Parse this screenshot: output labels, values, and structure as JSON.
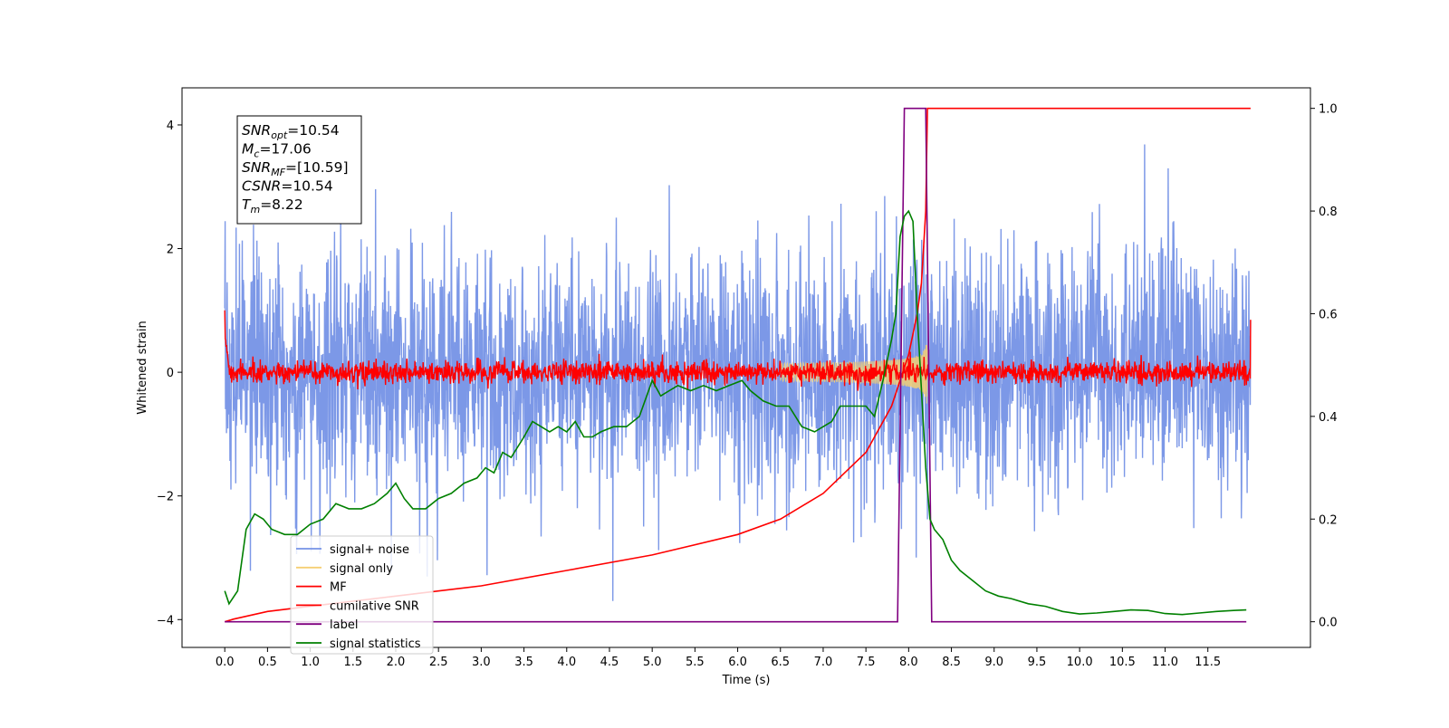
{
  "chart_data": {
    "type": "line",
    "xlabel": "Time (s)",
    "ylabel_left": "Whitened strain",
    "ylabel_right": "",
    "xlim": [
      -0.5,
      12.7
    ],
    "ylim_left": [
      -4.45,
      4.6
    ],
    "ylim_right": [
      -0.05,
      1.04
    ],
    "x_ticks": [
      0.0,
      0.5,
      1.0,
      1.5,
      2.0,
      2.5,
      3.0,
      3.5,
      4.0,
      4.5,
      5.0,
      5.5,
      6.0,
      6.5,
      7.0,
      7.5,
      8.0,
      8.5,
      9.0,
      9.5,
      10.0,
      10.5,
      11.0,
      11.5
    ],
    "x_tick_labels": [
      "0.0",
      "0.5",
      "1.0",
      "1.5",
      "2.0",
      "2.5",
      "3.0",
      "3.5",
      "4.0",
      "4.5",
      "5.0",
      "5.5",
      "6.0",
      "6.5",
      "7.0",
      "7.5",
      "8.0",
      "8.5",
      "9.0",
      "9.5",
      "10.0",
      "10.5",
      "11.0",
      "11.5"
    ],
    "y_left_ticks": [
      -4,
      -2,
      0,
      2,
      4
    ],
    "y_left_tick_labels": [
      "−4",
      "−2",
      "0",
      "2",
      "4"
    ],
    "y_right_ticks": [
      0.0,
      0.2,
      0.4,
      0.6,
      0.8,
      1.0
    ],
    "y_right_tick_labels": [
      "0.0",
      "0.2",
      "0.4",
      "0.6",
      "0.8",
      "1.0"
    ],
    "grid": false,
    "legend_position": "lower-left",
    "annotation_box": {
      "lines": [
        {
          "var": "SNR",
          "sub": "opt",
          "value": "=10.54"
        },
        {
          "var": "M",
          "sub": "c",
          "value": "=17.06"
        },
        {
          "var": "SNR",
          "sub": "MF",
          "value": "=[10.59]"
        },
        {
          "var": "CSNR",
          "sub": "",
          "value": "=10.54"
        },
        {
          "var": "T",
          "sub": "m",
          "value": "=8.22"
        }
      ]
    },
    "series": [
      {
        "name": "signal+ noise",
        "axis": "left",
        "color": "#7592e6",
        "kind": "noise",
        "x_range": [
          0.0,
          12.0
        ],
        "typical_amplitude": 1.0,
        "max_excursion": [
          -3.7,
          4.15
        ]
      },
      {
        "name": "signal only",
        "axis": "left",
        "color": "#f5cf73",
        "kind": "chirp",
        "x_range": [
          6.5,
          8.22
        ],
        "peak_amplitude": 0.95,
        "merger_time": 8.22
      },
      {
        "name": "MF",
        "axis": "left",
        "color": "#ff0000",
        "kind": "noise",
        "x_range": [
          0.0,
          12.0
        ],
        "typical_amplitude": 0.13,
        "edge_spike": 1.0
      },
      {
        "name": "cumilative SNR",
        "axis": "right",
        "color": "#ff0000",
        "x": [
          0.0,
          0.1,
          0.5,
          1.0,
          2.0,
          3.0,
          4.0,
          5.0,
          6.0,
          6.5,
          7.0,
          7.5,
          7.8,
          8.0,
          8.1,
          8.15,
          8.2,
          8.22,
          8.25,
          12.0
        ],
        "y": [
          0.0,
          0.005,
          0.02,
          0.03,
          0.05,
          0.07,
          0.1,
          0.13,
          0.17,
          0.2,
          0.25,
          0.33,
          0.42,
          0.52,
          0.6,
          0.66,
          0.8,
          1.0,
          1.0,
          1.0
        ]
      },
      {
        "name": "label",
        "axis": "right",
        "color": "#800080",
        "x": [
          0.0,
          7.87,
          7.95,
          8.2,
          8.27,
          11.95
        ],
        "y": [
          0.0,
          0.0,
          1.0,
          1.0,
          0.0,
          0.0
        ]
      },
      {
        "name": "signal statistics",
        "axis": "right",
        "color": "#008000",
        "x": [
          0.0,
          0.05,
          0.15,
          0.25,
          0.35,
          0.45,
          0.55,
          0.7,
          0.85,
          1.0,
          1.15,
          1.3,
          1.45,
          1.6,
          1.75,
          1.9,
          2.0,
          2.1,
          2.2,
          2.35,
          2.5,
          2.65,
          2.8,
          2.95,
          3.05,
          3.15,
          3.25,
          3.35,
          3.5,
          3.6,
          3.7,
          3.8,
          3.9,
          4.0,
          4.1,
          4.2,
          4.3,
          4.4,
          4.55,
          4.7,
          4.85,
          5.0,
          5.1,
          5.2,
          5.3,
          5.45,
          5.6,
          5.75,
          5.9,
          6.05,
          6.15,
          6.3,
          6.45,
          6.6,
          6.75,
          6.9,
          7.0,
          7.1,
          7.2,
          7.35,
          7.5,
          7.6,
          7.7,
          7.8,
          7.85,
          7.9,
          7.95,
          8.0,
          8.05,
          8.1,
          8.15,
          8.2,
          8.25,
          8.3,
          8.4,
          8.5,
          8.6,
          8.75,
          8.9,
          9.05,
          9.2,
          9.4,
          9.6,
          9.8,
          10.0,
          10.2,
          10.4,
          10.6,
          10.8,
          11.0,
          11.2,
          11.4,
          11.6,
          11.8,
          11.95
        ],
        "y": [
          0.06,
          0.035,
          0.06,
          0.18,
          0.21,
          0.2,
          0.18,
          0.17,
          0.17,
          0.19,
          0.2,
          0.23,
          0.22,
          0.22,
          0.23,
          0.25,
          0.27,
          0.24,
          0.22,
          0.22,
          0.24,
          0.25,
          0.27,
          0.28,
          0.3,
          0.29,
          0.33,
          0.32,
          0.36,
          0.39,
          0.38,
          0.37,
          0.38,
          0.37,
          0.39,
          0.36,
          0.36,
          0.37,
          0.38,
          0.38,
          0.4,
          0.47,
          0.44,
          0.45,
          0.46,
          0.45,
          0.46,
          0.45,
          0.46,
          0.47,
          0.45,
          0.43,
          0.42,
          0.42,
          0.38,
          0.37,
          0.38,
          0.39,
          0.42,
          0.42,
          0.42,
          0.4,
          0.47,
          0.55,
          0.6,
          0.75,
          0.79,
          0.8,
          0.78,
          0.6,
          0.45,
          0.3,
          0.2,
          0.18,
          0.16,
          0.12,
          0.1,
          0.08,
          0.06,
          0.05,
          0.045,
          0.035,
          0.03,
          0.02,
          0.015,
          0.017,
          0.02,
          0.023,
          0.022,
          0.016,
          0.014,
          0.017,
          0.02,
          0.022,
          0.023
        ]
      }
    ]
  }
}
